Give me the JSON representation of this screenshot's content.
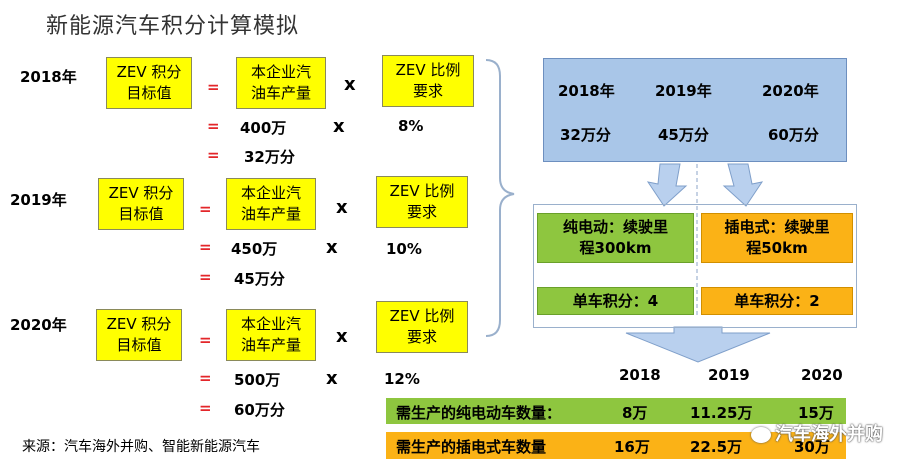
{
  "title": "新能源汽车积分计算模拟",
  "rows": [
    {
      "year": "2018年",
      "zev_target": [
        "ZEV 积分",
        "目标值"
      ],
      "production": [
        "本企业汽",
        "油车产量"
      ],
      "ratio_req": [
        "ZEV 比例",
        "要求"
      ],
      "prod_value": "400万",
      "ratio_value": "8%",
      "result": "32万分"
    },
    {
      "year": "2019年",
      "zev_target": [
        "ZEV 积分",
        "目标值"
      ],
      "production": [
        "本企业汽",
        "油车产量"
      ],
      "ratio_req": [
        "ZEV 比例",
        "要求"
      ],
      "prod_value": "450万",
      "ratio_value": "10%",
      "result": "45万分"
    },
    {
      "year": "2020年",
      "zev_target": [
        "ZEV 积分",
        "目标值"
      ],
      "production": [
        "本企业汽",
        "油车产量"
      ],
      "ratio_req": [
        "ZEV 比例",
        "要求"
      ],
      "prod_value": "500万",
      "ratio_value": "12%",
      "result": "60万分"
    }
  ],
  "ops": {
    "eq": "=",
    "times": "x"
  },
  "summary": {
    "years": [
      "2018年",
      "2019年",
      "2020年"
    ],
    "points": [
      "32万分",
      "45万分",
      "60万分"
    ]
  },
  "bev": {
    "desc": "纯电动：续驶里程300km",
    "desc_l1": "纯电动：续驶里",
    "desc_l2": "程300km",
    "credit": "单车积分：4"
  },
  "phev": {
    "desc_l1": "插电式：续驶里",
    "desc_l2": "程50km",
    "credit": "单车积分：2"
  },
  "result_years": [
    "2018",
    "2019",
    "2020"
  ],
  "bev_row": {
    "label": "需生产的纯电动车数量：",
    "values": [
      "8万",
      "11.25万",
      "15万"
    ]
  },
  "phev_row": {
    "label": "需生产的插电式车数量",
    "values": [
      "16万",
      "22.5万",
      "30万"
    ]
  },
  "footer": "来源：汽车海外并购、智能新能源汽车",
  "watermark": "汽车海外并购",
  "colors": {
    "yellow": "#ffff00",
    "blue": "#a9c6e8",
    "green": "#8ec63f",
    "orange": "#fbb216",
    "red": "#e3262a"
  }
}
